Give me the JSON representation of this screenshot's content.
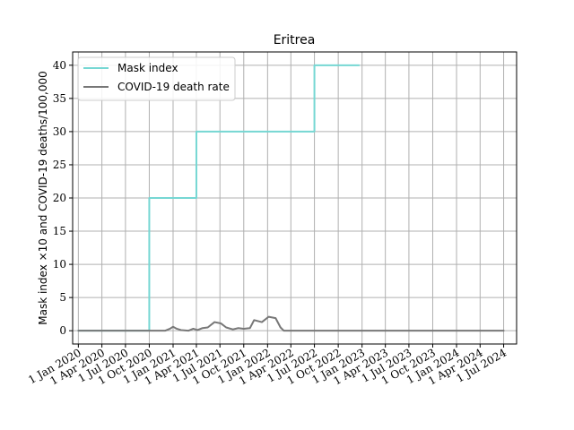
{
  "chart_data": {
    "type": "line",
    "title": "Eritrea",
    "xlabel": "",
    "ylabel": "Mask index ×10 and COVID-19 deaths/100,000",
    "x_range": [
      "2019-12-10",
      "2024-08-20"
    ],
    "ylim": [
      -2,
      42
    ],
    "yticks": [
      0,
      5,
      10,
      15,
      20,
      25,
      30,
      35,
      40
    ],
    "xticks": [
      {
        "date": "2020-01-01",
        "label": "1 Jan 2020"
      },
      {
        "date": "2020-04-01",
        "label": "1 Apr 2020"
      },
      {
        "date": "2020-07-01",
        "label": "1 Jul 2020"
      },
      {
        "date": "2020-10-01",
        "label": "1 Oct 2020"
      },
      {
        "date": "2021-01-01",
        "label": "1 Jan 2021"
      },
      {
        "date": "2021-04-01",
        "label": "1 Apr 2021"
      },
      {
        "date": "2021-07-01",
        "label": "1 Jul 2021"
      },
      {
        "date": "2021-10-01",
        "label": "1 Oct 2021"
      },
      {
        "date": "2022-01-01",
        "label": "1 Jan 2022"
      },
      {
        "date": "2022-04-01",
        "label": "1 Apr 2022"
      },
      {
        "date": "2022-07-01",
        "label": "1 Jul 2022"
      },
      {
        "date": "2022-10-01",
        "label": "1 Oct 2022"
      },
      {
        "date": "2023-01-01",
        "label": "1 Jan 2023"
      },
      {
        "date": "2023-04-01",
        "label": "1 Apr 2023"
      },
      {
        "date": "2023-07-01",
        "label": "1 Jul 2023"
      },
      {
        "date": "2023-10-01",
        "label": "1 Oct 2023"
      },
      {
        "date": "2024-01-01",
        "label": "1 Jan 2024"
      },
      {
        "date": "2024-04-01",
        "label": "1 Apr 2024"
      },
      {
        "date": "2024-07-01",
        "label": "1 Jul 2024"
      }
    ],
    "grid": true,
    "legend_position": "top-left",
    "series": [
      {
        "name": "Mask index",
        "color": "#76d7d3",
        "step": true,
        "points": [
          {
            "x": "2020-01-01",
            "y": 0
          },
          {
            "x": "2020-10-01",
            "y": 20
          },
          {
            "x": "2021-04-01",
            "y": 30
          },
          {
            "x": "2022-07-01",
            "y": 40
          },
          {
            "x": "2022-12-20",
            "y": 40
          }
        ]
      },
      {
        "name": "COVID-19 death rate",
        "color": "#777777",
        "step": false,
        "points": [
          {
            "x": "2020-01-01",
            "y": 0
          },
          {
            "x": "2020-12-01",
            "y": 0
          },
          {
            "x": "2020-12-20",
            "y": 0.3
          },
          {
            "x": "2021-01-01",
            "y": 0.6
          },
          {
            "x": "2021-01-15",
            "y": 0.3
          },
          {
            "x": "2021-02-01",
            "y": 0.1
          },
          {
            "x": "2021-03-01",
            "y": 0.0
          },
          {
            "x": "2021-03-20",
            "y": 0.3
          },
          {
            "x": "2021-04-05",
            "y": 0.1
          },
          {
            "x": "2021-04-25",
            "y": 0.4
          },
          {
            "x": "2021-05-15",
            "y": 0.5
          },
          {
            "x": "2021-06-10",
            "y": 1.3
          },
          {
            "x": "2021-07-05",
            "y": 1.1
          },
          {
            "x": "2021-07-25",
            "y": 0.5
          },
          {
            "x": "2021-08-20",
            "y": 0.2
          },
          {
            "x": "2021-09-10",
            "y": 0.4
          },
          {
            "x": "2021-10-01",
            "y": 0.3
          },
          {
            "x": "2021-10-25",
            "y": 0.4
          },
          {
            "x": "2021-11-10",
            "y": 1.6
          },
          {
            "x": "2021-12-10",
            "y": 1.3
          },
          {
            "x": "2022-01-05",
            "y": 2.1
          },
          {
            "x": "2022-02-01",
            "y": 1.9
          },
          {
            "x": "2022-02-20",
            "y": 0.5
          },
          {
            "x": "2022-03-05",
            "y": 0
          },
          {
            "x": "2024-07-01",
            "y": 0
          }
        ]
      }
    ]
  }
}
